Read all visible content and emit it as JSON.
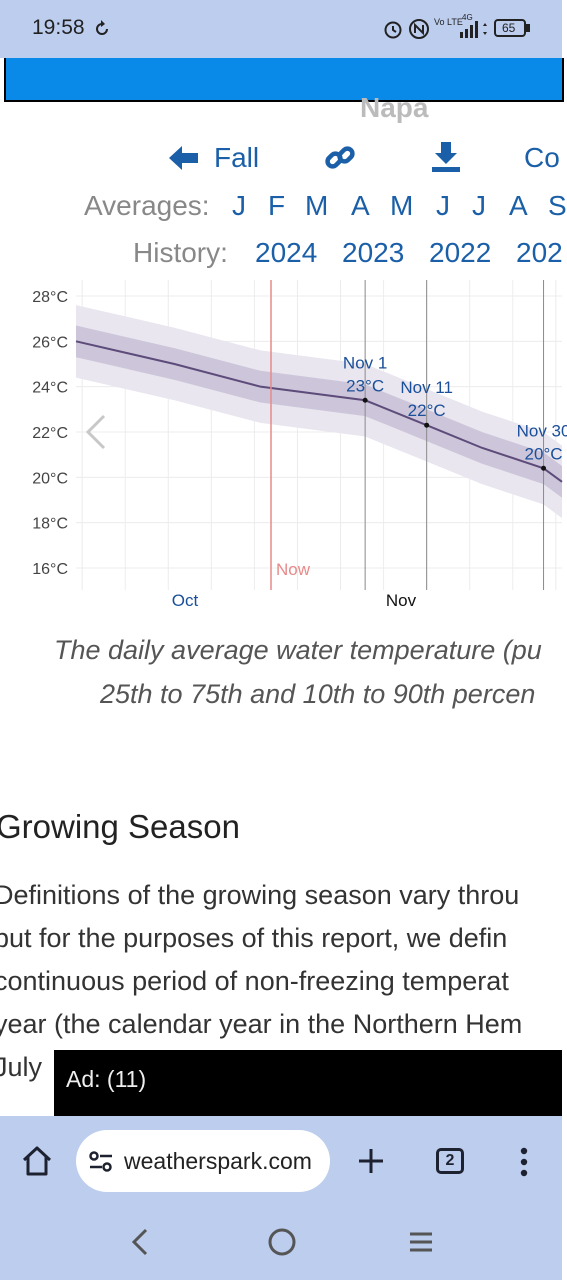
{
  "status": {
    "time": "19:58",
    "battery": "65",
    "network": "Vo LTE",
    "network_type": "4G"
  },
  "page": {
    "partial_title": "Napa"
  },
  "nav": {
    "prev_label": "Fall",
    "next_label_partial": "Co"
  },
  "averages": {
    "label": "Averages:",
    "months": [
      "J",
      "F",
      "M",
      "A",
      "M",
      "J",
      "J",
      "A",
      "S"
    ]
  },
  "history": {
    "label": "History:",
    "years": [
      "2024",
      "2023",
      "2022",
      "202"
    ]
  },
  "chart_data": {
    "type": "line",
    "y_ticks": [
      "28°C",
      "26°C",
      "24°C",
      "22°C",
      "20°C",
      "18°C",
      "16°C"
    ],
    "ylim": [
      15,
      28.5
    ],
    "x_labels": [
      {
        "label": "Oct"
      },
      {
        "label": "Nov"
      }
    ],
    "now_label": "Now",
    "median_series": [
      {
        "date": "Sep 15",
        "y": 26.0
      },
      {
        "date": "Oct 1",
        "y": 25.0
      },
      {
        "date": "Oct 15",
        "y": 24.0
      },
      {
        "date": "Nov 1",
        "y": 23.4
      },
      {
        "date": "Nov 11",
        "y": 22.3
      },
      {
        "date": "Nov 20",
        "y": 21.3
      },
      {
        "date": "Nov 30",
        "y": 20.4
      },
      {
        "date": "Dec 3",
        "y": 19.8
      }
    ],
    "band_25_75_halfwidth": 0.7,
    "band_10_90_halfwidth": 1.6,
    "annotations": [
      {
        "date": "Nov 1",
        "value": 23.4,
        "label1": "Nov 1",
        "label2": "23°C"
      },
      {
        "date": "Nov 11",
        "value": 22.3,
        "label1": "Nov 11",
        "label2": "22°C"
      },
      {
        "date": "Nov 30",
        "value": 20.4,
        "label1": "Nov 30",
        "label2": "20°C"
      }
    ],
    "colors": {
      "line": "#5d4b7a",
      "band_inner": "#cdc6da",
      "band_outer": "#e9e6ef",
      "now": "#e88a8a",
      "label": "#1a4f9a"
    }
  },
  "caption": {
    "line1": "The daily average water temperature (pu",
    "line2": "25th to 75th and 10th to 90th percen"
  },
  "section": {
    "heading": "Growing Season",
    "lines": [
      "Definitions of the growing season vary throu",
      "but for the purposes of this report, we defin",
      "continuous period of non-freezing temperat",
      "year (the calendar year in the Northern Hem",
      "July"
    ]
  },
  "ad": {
    "label": "Ad: (11)"
  },
  "browser": {
    "url": "weatherspark.com",
    "tab_count": "2"
  }
}
